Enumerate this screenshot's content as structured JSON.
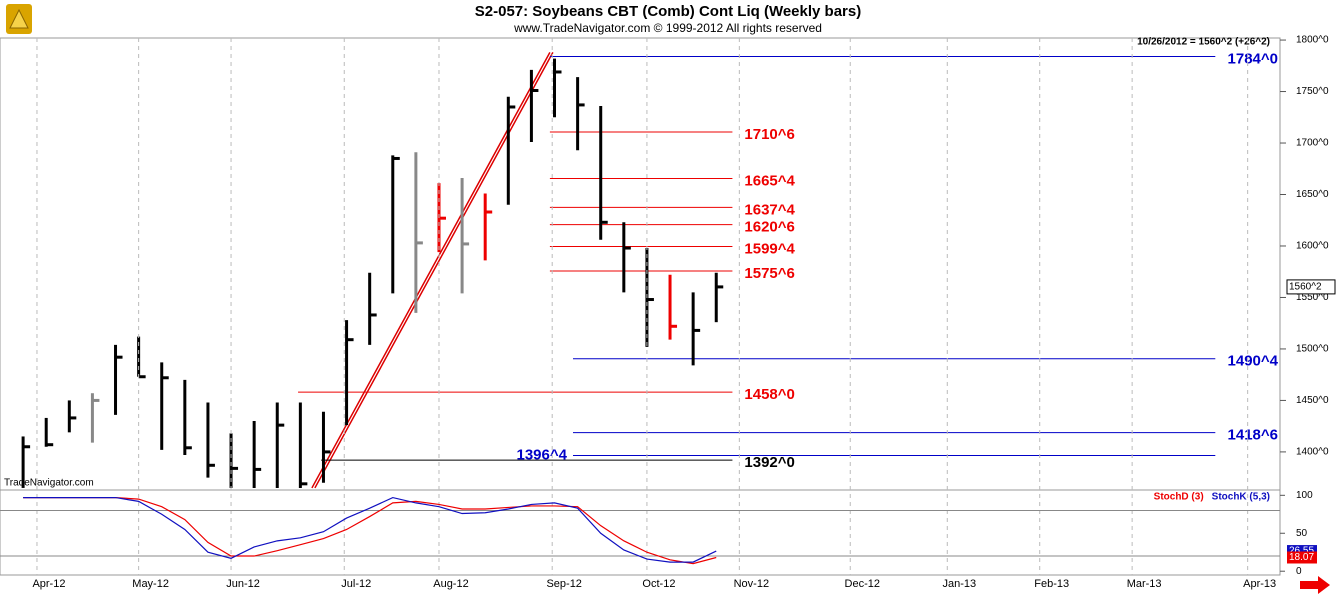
{
  "chart_data": [
    {
      "type": "ohlc",
      "title": "S2-057:  Soybeans CBT (Comb) Cont Liq  (Weekly bars)",
      "subtitle": "www.TradeNavigator.com © 1999-2012 All rights reserved",
      "status": "10/26/2012 = 1560^2 (+26^2)",
      "watermark": "TradeNavigator.com",
      "x": [
        0,
        1,
        2,
        3,
        4,
        5,
        6,
        7,
        8,
        9,
        10,
        11,
        12,
        13,
        14,
        15,
        16,
        17,
        18,
        19,
        20,
        21,
        22,
        23,
        24,
        25,
        26,
        27,
        28,
        29,
        30
      ],
      "xlim": [
        -1,
        54.4
      ],
      "high": [
        1415,
        1433,
        1450,
        1457,
        1504,
        1512,
        1487,
        1470,
        1448,
        1418,
        1430,
        1448,
        1448,
        1439,
        1528,
        1574,
        1688,
        1691,
        1661,
        1666,
        1651,
        1745,
        1771,
        1782,
        1764,
        1736,
        1623,
        1598,
        1572,
        1555,
        1574
      ],
      "low": [
        1365,
        1405,
        1419,
        1409,
        1436,
        1473,
        1402,
        1397,
        1375,
        1365,
        1365,
        1365,
        1365,
        1370,
        1426,
        1504,
        1554,
        1535,
        1594,
        1554,
        1586,
        1640,
        1701,
        1725,
        1693,
        1606,
        1555,
        1502,
        1509,
        1484,
        1526
      ],
      "close": [
        1405,
        1407,
        1433,
        1450,
        1492,
        1473,
        1472,
        1404,
        1387,
        1384,
        1383,
        1426,
        1369,
        1400,
        1509,
        1533,
        1685,
        1603,
        1627,
        1602,
        1633,
        1735,
        1751,
        1769,
        1737,
        1623,
        1598,
        1548,
        1522,
        1518,
        1560.25
      ],
      "bar_colors": [
        "#000",
        "#000",
        "#000",
        "#888",
        "#000",
        "#000",
        "#000",
        "#000",
        "#000",
        "#000",
        "#000",
        "#000",
        "#000",
        "#000",
        "#000",
        "#000",
        "#000",
        "#888",
        "#e00",
        "#888",
        "#e00",
        "#000",
        "#000",
        "#000",
        "#000",
        "#000",
        "#000",
        "#000",
        "#e00",
        "#000",
        "#000"
      ],
      "last": {
        "value": 1560.25,
        "label": "1560^2"
      },
      "ylim": [
        1363,
        1802
      ],
      "yticks": [
        {
          "value": 1400,
          "label": "1400^0"
        },
        {
          "value": 1450,
          "label": "1450^0"
        },
        {
          "value": 1500,
          "label": "1500^0"
        },
        {
          "value": 1550,
          "label": "1550^0"
        },
        {
          "value": 1600,
          "label": "1600^0"
        },
        {
          "value": 1650,
          "label": "1650^0"
        },
        {
          "value": 1700,
          "label": "1700^0"
        },
        {
          "value": 1750,
          "label": "1750^0"
        },
        {
          "value": 1800,
          "label": "1800^0"
        }
      ],
      "trendline": {
        "color": "#d00",
        "x": [
          12.5,
          22.8
        ],
        "y": [
          1365,
          1788
        ]
      },
      "levels": [
        {
          "value": 1784,
          "label": "1784^0",
          "color": "#0000c8",
          "x_start": 22.8,
          "x_end": 51.6,
          "label_side": "end"
        },
        {
          "value": 1710.75,
          "label": "1710^6",
          "color": "#e00",
          "x_start": 22.8,
          "x_end": 30.7,
          "label_side": "end"
        },
        {
          "value": 1665.5,
          "label": "1665^4",
          "color": "#e00",
          "x_start": 22.8,
          "x_end": 30.7,
          "label_side": "end"
        },
        {
          "value": 1637.5,
          "label": "1637^4",
          "color": "#e00",
          "x_start": 22.8,
          "x_end": 30.7,
          "label_side": "end"
        },
        {
          "value": 1620.75,
          "label": "1620^6",
          "color": "#e00",
          "x_start": 22.8,
          "x_end": 30.7,
          "label_side": "end"
        },
        {
          "value": 1599.5,
          "label": "1599^4",
          "color": "#e00",
          "x_start": 22.8,
          "x_end": 30.7,
          "label_side": "end"
        },
        {
          "value": 1575.75,
          "label": "1575^6",
          "color": "#e00",
          "x_start": 22.8,
          "x_end": 30.7,
          "label_side": "end"
        },
        {
          "value": 1490.5,
          "label": "1490^4",
          "color": "#0000c8",
          "x_start": 23.8,
          "x_end": 51.6,
          "label_side": "end"
        },
        {
          "value": 1458,
          "label": "1458^0",
          "color": "#e00",
          "x_start": 11.9,
          "x_end": 30.7,
          "label_side": "end"
        },
        {
          "value": 1418.75,
          "label": "1418^6",
          "color": "#0000c8",
          "x_start": 23.8,
          "x_end": 51.6,
          "label_side": "end"
        },
        {
          "value": 1396.5,
          "label": "1396^4",
          "color": "#0000c8",
          "x_start": 23.8,
          "x_end": 51.6,
          "label_side": "start"
        },
        {
          "value": 1392,
          "label": "1392^0",
          "color": "#000",
          "x_start": 12.9,
          "x_end": 30.7,
          "label_side": "end"
        }
      ]
    },
    {
      "type": "line",
      "x": [
        0,
        1,
        2,
        3,
        4,
        5,
        6,
        7,
        8,
        9,
        10,
        11,
        12,
        13,
        14,
        15,
        16,
        17,
        18,
        19,
        20,
        21,
        22,
        23,
        24,
        25,
        26,
        27,
        28,
        29,
        30
      ],
      "xlim": [
        -1,
        54.4
      ],
      "xticks": [
        {
          "value": 0.6,
          "label": "Apr-12"
        },
        {
          "value": 5,
          "label": "May-12"
        },
        {
          "value": 9,
          "label": "Jun-12"
        },
        {
          "value": 13.9,
          "label": "Jul-12"
        },
        {
          "value": 18,
          "label": "Aug-12"
        },
        {
          "value": 22.9,
          "label": "Sep-12"
        },
        {
          "value": 27,
          "label": "Oct-12"
        },
        {
          "value": 31,
          "label": "Nov-12"
        },
        {
          "value": 35.8,
          "label": "Dec-12"
        },
        {
          "value": 40,
          "label": "Jan-13"
        },
        {
          "value": 44,
          "label": "Feb-13"
        },
        {
          "value": 48,
          "label": "Mar-13"
        },
        {
          "value": 53,
          "label": "Apr-13"
        }
      ],
      "ylim": [
        -5,
        107
      ],
      "yticks": [
        0,
        50,
        100
      ],
      "ref_lines": [
        20,
        80
      ],
      "series": [
        {
          "name": "StochD (3)",
          "color": "#e00",
          "values": [
            97,
            97,
            97,
            97,
            97,
            95,
            85,
            68,
            38,
            20,
            20,
            27,
            35,
            43,
            55,
            72,
            90,
            92,
            88,
            82,
            82,
            84,
            86,
            86,
            85,
            60,
            40,
            25,
            15,
            10,
            18.07
          ]
        },
        {
          "name": "StochK (5,3)",
          "color": "#1010c0",
          "values": [
            97,
            97,
            97,
            97,
            97,
            92,
            75,
            55,
            25,
            17,
            32,
            40,
            44,
            52,
            70,
            83,
            97,
            90,
            85,
            76,
            77,
            82,
            88,
            90,
            83,
            50,
            28,
            16,
            12,
            12,
            26.55
          ]
        }
      ]
    }
  ]
}
